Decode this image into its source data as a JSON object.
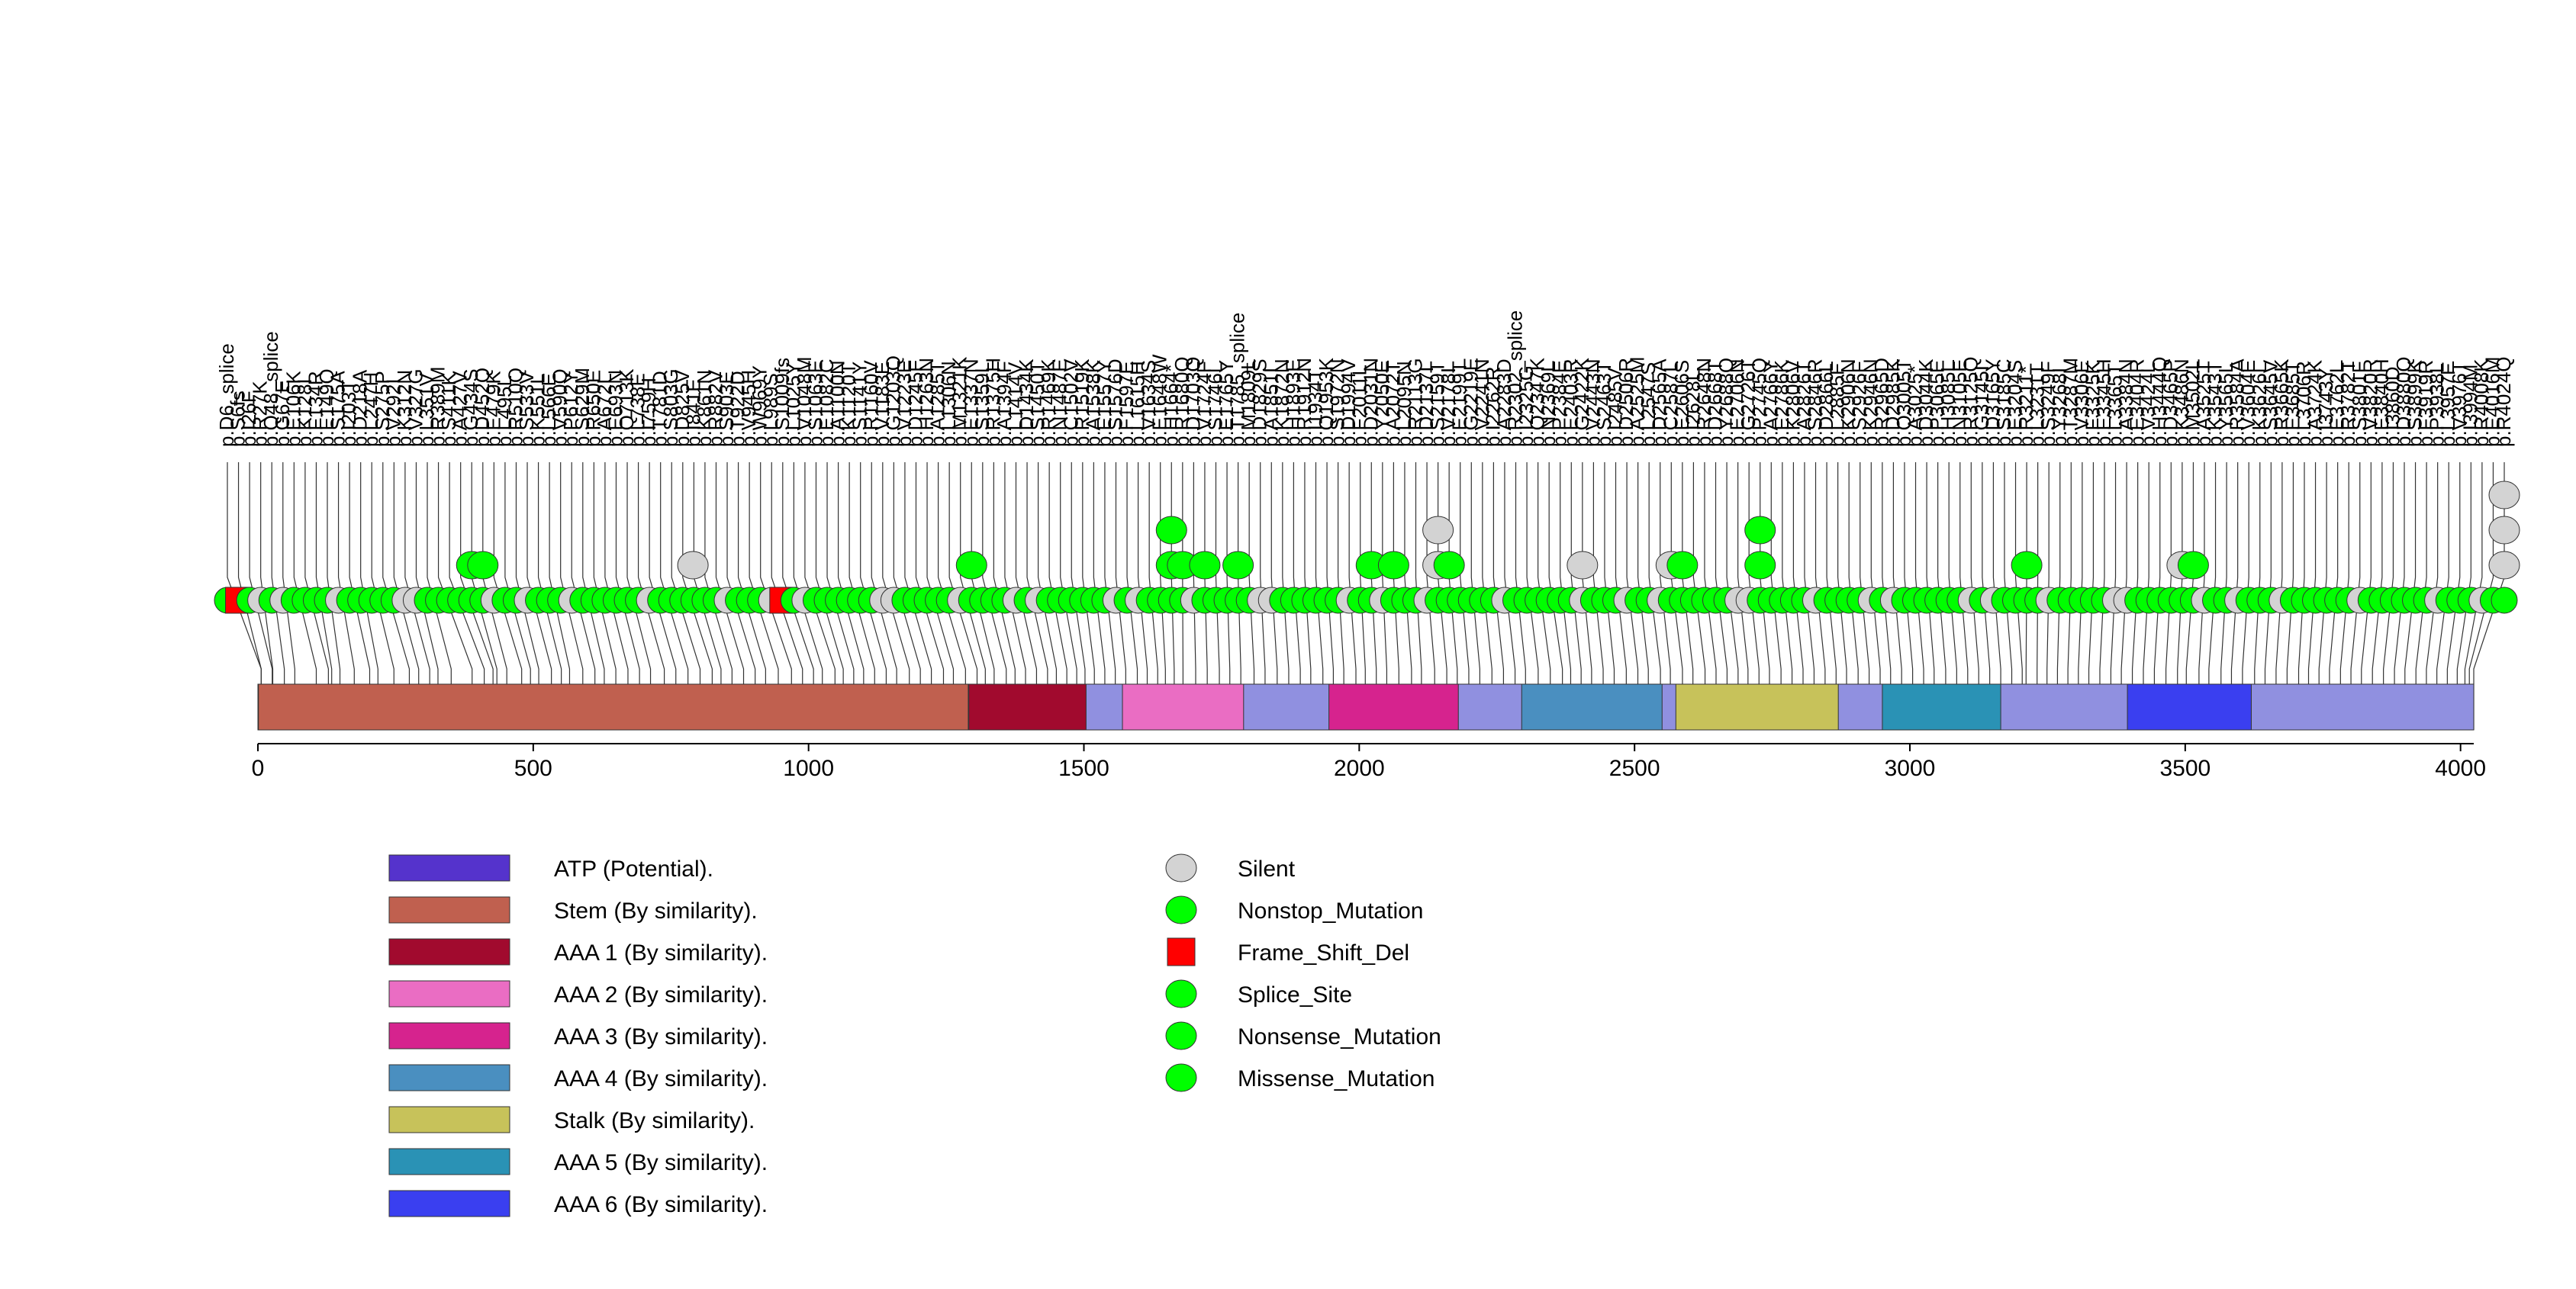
{
  "chart_data": {
    "type": "lollipop",
    "protein_length": 4024,
    "axis": {
      "xlim": [
        0,
        4024
      ],
      "ticks": [
        0,
        500,
        1000,
        1500,
        2000,
        2500,
        3000,
        3500,
        4000
      ]
    },
    "domains": [
      {
        "name": "Stem (By similarity).",
        "start": 1,
        "end": 1290,
        "color": "#c0604f"
      },
      {
        "name": "AAA 1 (By similarity).",
        "start": 1291,
        "end": 1504,
        "color": "#a10a2e"
      },
      {
        "name": "AAA 2 (By similarity).",
        "start": 1570,
        "end": 1790,
        "color": "#ea6dc3"
      },
      {
        "name": "AAA 3 (By similarity).",
        "start": 1945,
        "end": 2180,
        "color": "#d6238e"
      },
      {
        "name": "AAA 4 (By similarity).",
        "start": 2295,
        "end": 2550,
        "color": "#4a8fc0"
      },
      {
        "name": "Stalk (By similarity).",
        "start": 2575,
        "end": 2870,
        "color": "#c7c25a"
      },
      {
        "name": "AAA 5 (By similarity).",
        "start": 2950,
        "end": 3165,
        "color": "#2a92b5"
      },
      {
        "name": "AAA 6 (By similarity).",
        "start": 3395,
        "end": 3620,
        "color": "#3a3ff0"
      },
      {
        "name": "ATP (Potential).",
        "start": 0,
        "end": 0,
        "color": "#5533cc"
      }
    ],
    "legend": {
      "domains": [
        {
          "label": "ATP (Potential).",
          "color": "#5533cc"
        },
        {
          "label": "Stem (By similarity).",
          "color": "#c0604f"
        },
        {
          "label": "AAA 1 (By similarity).",
          "color": "#a10a2e"
        },
        {
          "label": "AAA 2 (By similarity).",
          "color": "#ea6dc3"
        },
        {
          "label": "AAA 3 (By similarity).",
          "color": "#d6238e"
        },
        {
          "label": "AAA 4 (By similarity).",
          "color": "#4a8fc0"
        },
        {
          "label": "Stalk (By similarity).",
          "color": "#c7c25a"
        },
        {
          "label": "AAA 5 (By similarity).",
          "color": "#2a92b5"
        },
        {
          "label": "AAA 6 (By similarity).",
          "color": "#3a3ff0"
        }
      ],
      "mutation_types": [
        {
          "label": "Silent",
          "color": "#d3d3d3",
          "shape": "circle"
        },
        {
          "label": "Nonstop_Mutation",
          "color": "#00ff00",
          "shape": "circle"
        },
        {
          "label": "Frame_Shift_Del",
          "color": "#ff0000",
          "shape": "square"
        },
        {
          "label": "Splice_Site",
          "color": "#00ff00",
          "shape": "circle"
        },
        {
          "label": "Nonsense_Mutation",
          "color": "#00ff00",
          "shape": "circle"
        },
        {
          "label": "Missense_Mutation",
          "color": "#00ff00",
          "shape": "circle"
        }
      ]
    },
    "stacks": [
      {
        "pos": 434,
        "type": "Missense_Mutation",
        "count": 1
      },
      {
        "pos": 452,
        "type": "Missense_Mutation",
        "count": 1
      },
      {
        "pos": 790,
        "type": "Silent",
        "count": 1
      },
      {
        "pos": 1337,
        "type": "Missense_Mutation",
        "count": 1
      },
      {
        "pos": 1664,
        "type": "Missense_Mutation",
        "count": 2
      },
      {
        "pos": 1680,
        "type": "Missense_Mutation",
        "count": 1
      },
      {
        "pos": 1724,
        "type": "Missense_Mutation",
        "count": 1
      },
      {
        "pos": 1785,
        "type": "Missense_Mutation",
        "count": 1
      },
      {
        "pos": 2031,
        "type": "Missense_Mutation",
        "count": 1
      },
      {
        "pos": 2072,
        "type": "Missense_Mutation",
        "count": 1
      },
      {
        "pos": 2159,
        "type": "Silent",
        "count": 2
      },
      {
        "pos": 2178,
        "type": "Missense_Mutation",
        "count": 1
      },
      {
        "pos": 2422,
        "type": "Silent",
        "count": 1
      },
      {
        "pos": 2587,
        "type": "Silent",
        "count": 1
      },
      {
        "pos": 2606,
        "type": "Missense_Mutation",
        "count": 1
      },
      {
        "pos": 2745,
        "type": "Missense_Mutation",
        "count": 2
      },
      {
        "pos": 3211,
        "type": "Missense_Mutation",
        "count": 1
      },
      {
        "pos": 3486,
        "type": "Silent",
        "count": 1
      },
      {
        "pos": 3502,
        "type": "Missense_Mutation",
        "count": 1
      },
      {
        "pos": 4024,
        "type": "Silent",
        "count": 3
      }
    ],
    "labels": [
      "p.D6_splice",
      "p.S6fs",
      "p.I26F",
      "p.R27K",
      "p.Q48_splice",
      "p.G67E",
      "p.E106K",
      "p.K128I",
      "p.F134R",
      "p.E149Q",
      "p.S175A",
      "p.I203T",
      "p.D218A",
      "p.L247H",
      "p.S275P",
      "p.V292I",
      "p.K312N",
      "p.V327G",
      "p.L351V",
      "p.R389M",
      "p.S411K",
      "p.A427V",
      "p.G434S",
      "p.D452Q",
      "p.E479K",
      "p.L495L",
      "p.R510Q",
      "p.S533V",
      "p.K551L",
      "p.L566E",
      "p.V590Q",
      "p.P612Y",
      "p.S629M",
      "p.R650E",
      "p.A672L",
      "p.E693N",
      "p.Q713K",
      "p.L738E",
      "p.I759H",
      "p.T781D",
      "p.S803G",
      "p.D825V",
      "p.I841E",
      "p.K861N",
      "p.R882V",
      "p.S903E",
      "p.T922D",
      "p.V945H",
      "p.W969Y",
      "p.L989S",
      "p.S1009fs",
      "p.L1025Y",
      "p.V1048M",
      "p.S1063E",
      "p.E1082C",
      "p.A1100N",
      "p.K1120T",
      "p.S1141Y",
      "p.R1160V",
      "p.V1183E",
      "p.G1203Q",
      "p.V1223E",
      "p.D1245F",
      "p.H1263N",
      "p.A1285T",
      "p.L1306N",
      "p.M1321K",
      "p.E1337N",
      "p.S1359L",
      "p.R1375H",
      "p.A1394F",
      "p.L1414V",
      "p.D1434K",
      "p.S1450T",
      "p.R1469K",
      "p.N1487E",
      "p.C1502V",
      "p.R1519K",
      "p.A1538K",
      "p.E1557Y",
      "p.S1576D",
      "p.F1597E",
      "p.L1615H",
      "p.V1634S",
      "p.E1648W",
      "p.H1664*",
      "p.R1680Q",
      "p.D1703Q",
      "p.V1724F",
      "p.S1746L",
      "p.E1765Y",
      "p.T1785_splice",
      "p.M1809L",
      "p.D1829S",
      "p.A1851I",
      "p.K1872N",
      "p.H1893E",
      "p.R1912N",
      "p.I1934T",
      "p.Q1953K",
      "p.S1972N",
      "p.D1994V",
      "p.F2011L",
      "p.D2031N",
      "p.Y2050E",
      "p.A2072T",
      "p.L2095N",
      "p.R2113G",
      "p.D2137I",
      "p.S2159T",
      "p.V2178I",
      "p.E2199T",
      "p.G2219E",
      "p.V2241N",
      "p.I2262R",
      "p.A2283D",
      "p.R2302_splice",
      "p.I2325G",
      "p.Q2347K",
      "p.N2369L",
      "p.P2384E",
      "p.E2403R",
      "p.G2422K",
      "p.V2443N",
      "p.S2463T",
      "p.I2485V",
      "p.D2506R",
      "p.A2525M",
      "p.L2547S",
      "p.D2565A",
      "p.C2587L",
      "p.E2606S",
      "p.I2628L",
      "p.R2648N",
      "p.D2668T",
      "p.Y2688Q",
      "p.E2706N",
      "p.G2726T",
      "p.P2745Q",
      "p.A2766Y",
      "p.E2786K",
      "p.K2806V",
      "p.A2826T",
      "p.S2846R",
      "p.D2866L",
      "p.L2885F",
      "p.K2906N",
      "p.S2926F",
      "p.K2946N",
      "p.R2965D",
      "p.D2985K",
      "p.Q3005T",
      "p.A3025*",
      "p.D3044K",
      "p.P3065E",
      "p.H3085L",
      "p.N3105E",
      "p.R3125Q",
      "p.G3145I",
      "p.D3165Y",
      "p.S3185C",
      "p.E3204S",
      "p.R3211*",
      "p.L3231T",
      "p.S3249F",
      "p.Y3268I",
      "p.T3287M",
      "p.V3306E",
      "p.F3325K",
      "p.E3345H",
      "p.L3365T",
      "p.A3384N",
      "p.E3404R",
      "p.V3424L",
      "p.H3444Q",
      "p.D3465P",
      "p.K3486N",
      "p.M3502L",
      "p.A3525T",
      "p.K3543T",
      "p.Y3565L",
      "p.R3584A",
      "p.V3604E",
      "p.K3626L",
      "p.S3645V",
      "p.R3665K",
      "p.E3685T",
      "p.L3706R",
      "p.A3724K",
      "p.I3743Y",
      "p.E3762L",
      "p.R3782T",
      "p.S3801F",
      "p.V3820R",
      "p.E3840H",
      "p.I3860D",
      "p.D3880Q",
      "p.S3899K",
      "p.F3919R",
      "p.P3938L",
      "p.L3957F",
      "p.V3976T",
      "p.I3994M",
      "p.R4008K",
      "p.E4016M",
      "p.R4024Q"
    ]
  }
}
